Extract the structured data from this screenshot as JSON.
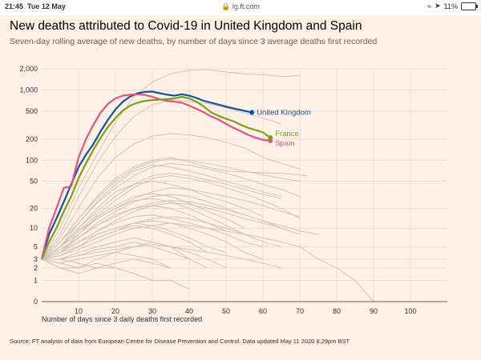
{
  "statusbar": {
    "time": "21:45",
    "date": "Tue 12 May",
    "url": "ig.ft.com",
    "battery": "11%"
  },
  "title": "New deaths attributed to Covid-19 in United Kingdom and Spain",
  "subtitle": "Seven-day rolling average of new deaths, by number of days since 3 average deaths first recorded",
  "source": "Source: FT analysis of data from European Centre for Disease Prevention and Control. Data updated May 11 2020 8.29pm BST",
  "colors": {
    "background": "#fff1e5",
    "grid": "#e9ddd2",
    "other": "#c9c0b8",
    "uk": "#0f5499",
    "spain": "#e25381",
    "france": "#7e9d1c"
  },
  "chart_data": {
    "type": "line",
    "xlabel": "Number of days since 3 daily deaths first recorded",
    "ylabel": "",
    "yscale": "log",
    "xlim": [
      0,
      110
    ],
    "ylim": [
      0,
      2000
    ],
    "xticks": [
      10,
      20,
      30,
      40,
      50,
      60,
      70,
      80,
      90,
      100
    ],
    "yticks": [
      {
        "v": 0,
        "label": "0"
      },
      {
        "v": 1,
        "label": "1"
      },
      {
        "v": 2,
        "label": "2"
      },
      {
        "v": 3,
        "label": "3"
      },
      {
        "v": 5,
        "label": "5"
      },
      {
        "v": 10,
        "label": "10"
      },
      {
        "v": 20,
        "label": "20"
      },
      {
        "v": 50,
        "label": "50"
      },
      {
        "v": 100,
        "label": "100"
      },
      {
        "v": 200,
        "label": "200"
      },
      {
        "v": 500,
        "label": "500"
      },
      {
        "v": 1000,
        "label": "1,000"
      },
      {
        "v": 2000,
        "label": "2,000"
      }
    ],
    "series": [
      {
        "name": "United Kingdom",
        "color": "#0f5499",
        "highlight": true,
        "x": [
          0,
          2,
          4,
          6,
          8,
          10,
          12,
          14,
          16,
          18,
          20,
          22,
          24,
          26,
          28,
          30,
          32,
          34,
          36,
          38,
          40,
          42,
          44,
          46,
          48,
          50,
          52,
          54,
          57
        ],
        "y": [
          3,
          8,
          14,
          25,
          45,
          80,
          120,
          170,
          260,
          380,
          530,
          680,
          810,
          900,
          940,
          950,
          900,
          860,
          830,
          870,
          830,
          770,
          700,
          660,
          620,
          580,
          550,
          520,
          480
        ]
      },
      {
        "name": "Spain",
        "color": "#e25381",
        "highlight": true,
        "x": [
          0,
          2,
          4,
          6,
          8,
          10,
          12,
          14,
          16,
          18,
          20,
          22,
          24,
          26,
          28,
          30,
          32,
          34,
          36,
          38,
          40,
          42,
          44,
          46,
          48,
          50,
          52,
          54,
          56,
          58,
          60,
          62
        ],
        "y": [
          3,
          10,
          20,
          40,
          42,
          110,
          200,
          320,
          480,
          640,
          760,
          830,
          860,
          870,
          850,
          800,
          740,
          700,
          680,
          660,
          600,
          540,
          480,
          420,
          380,
          330,
          290,
          260,
          230,
          210,
          195,
          190
        ]
      },
      {
        "name": "France",
        "color": "#7e9d1c",
        "highlight": true,
        "x": [
          0,
          2,
          4,
          6,
          8,
          10,
          12,
          14,
          16,
          18,
          20,
          22,
          24,
          26,
          28,
          30,
          32,
          34,
          36,
          38,
          40,
          42,
          44,
          46,
          48,
          50,
          52,
          54,
          56,
          58,
          60,
          62
        ],
        "y": [
          3,
          6,
          10,
          18,
          30,
          55,
          90,
          140,
          210,
          300,
          400,
          510,
          600,
          660,
          700,
          720,
          730,
          740,
          760,
          800,
          760,
          680,
          580,
          480,
          430,
          390,
          360,
          320,
          290,
          270,
          250,
          210
        ]
      },
      {
        "name": "",
        "x": [
          0,
          5,
          10,
          15,
          20,
          25,
          30,
          35,
          40,
          45,
          50,
          55,
          60,
          65,
          70
        ],
        "y": [
          3,
          10,
          40,
          120,
          350,
          800,
          1300,
          1700,
          1900,
          1950,
          1800,
          1700,
          1650,
          1550,
          1600
        ]
      },
      {
        "name": "",
        "x": [
          0,
          5,
          10,
          15,
          20,
          25,
          30,
          35,
          40,
          45,
          50,
          55,
          60,
          65
        ],
        "y": [
          3,
          8,
          30,
          90,
          220,
          420,
          620,
          720,
          690,
          640,
          560,
          470,
          400,
          330
        ]
      },
      {
        "name": "",
        "x": [
          0,
          5,
          10,
          15,
          20,
          25,
          30,
          35,
          40,
          45,
          50,
          55,
          60,
          65,
          70
        ],
        "y": [
          3,
          7,
          20,
          55,
          110,
          170,
          220,
          240,
          230,
          210,
          180,
          150,
          110,
          90,
          75
        ]
      },
      {
        "name": "",
        "x": [
          0,
          5,
          10,
          15,
          20,
          25,
          30,
          35,
          40,
          45,
          50,
          55,
          60,
          65,
          72
        ],
        "y": [
          3,
          6,
          14,
          30,
          55,
          80,
          100,
          110,
          95,
          80,
          70,
          68,
          66,
          65,
          60
        ]
      },
      {
        "name": "",
        "x": [
          0,
          5,
          10,
          15,
          20,
          25,
          30,
          35,
          40,
          45,
          50,
          55,
          60,
          65
        ],
        "y": [
          3,
          5,
          12,
          25,
          45,
          70,
          85,
          80,
          70,
          60,
          50,
          42,
          35,
          30
        ]
      },
      {
        "name": "",
        "x": [
          0,
          5,
          10,
          15,
          20,
          25,
          30,
          35,
          40,
          45,
          50,
          55,
          60
        ],
        "y": [
          3,
          5,
          10,
          20,
          35,
          45,
          50,
          45,
          38,
          30,
          25,
          20,
          15
        ]
      },
      {
        "name": "",
        "x": [
          0,
          5,
          10,
          15,
          20,
          25,
          30,
          35,
          40,
          45,
          50,
          55
        ],
        "y": [
          3,
          4,
          8,
          15,
          22,
          30,
          33,
          30,
          24,
          18,
          14,
          10
        ]
      },
      {
        "name": "",
        "x": [
          0,
          5,
          10,
          15,
          20,
          25,
          30,
          35,
          40,
          45,
          50
        ],
        "y": [
          3,
          4,
          7,
          11,
          16,
          20,
          22,
          20,
          16,
          12,
          9
        ]
      },
      {
        "name": "",
        "x": [
          0,
          5,
          10,
          15,
          20,
          25,
          30,
          35,
          40,
          45
        ],
        "y": [
          3,
          3.5,
          5,
          7,
          9,
          11,
          10,
          8,
          6,
          4
        ]
      },
      {
        "name": "",
        "x": [
          0,
          5,
          10,
          15,
          20,
          25,
          30,
          35,
          40
        ],
        "y": [
          3,
          3,
          4,
          5,
          6,
          7,
          6,
          5,
          3
        ]
      },
      {
        "name": "",
        "x": [
          0,
          5,
          10,
          15,
          20,
          25,
          30,
          35
        ],
        "y": [
          3,
          2.5,
          3,
          3.5,
          4,
          3.5,
          3,
          2
        ]
      },
      {
        "name": "",
        "x": [
          0,
          5,
          10,
          15,
          20,
          25,
          30
        ],
        "y": [
          3,
          2,
          2,
          2.5,
          2,
          1.5,
          1
        ]
      },
      {
        "name": "",
        "x": [
          0,
          5,
          10,
          15,
          20,
          25,
          30,
          35,
          40,
          45,
          50,
          55,
          60,
          65,
          70
        ],
        "y": [
          3,
          4,
          6,
          9,
          13,
          18,
          22,
          24,
          23,
          20,
          17,
          14,
          12,
          10,
          8
        ]
      },
      {
        "name": "",
        "x": [
          0,
          5,
          10,
          15,
          20,
          25,
          30,
          35,
          40,
          45,
          50,
          55,
          60,
          65,
          70,
          75,
          80,
          85,
          90,
          95,
          100
        ],
        "y": [
          3,
          3.5,
          4.5,
          6,
          8,
          10,
          11,
          12,
          11,
          10,
          9,
          8,
          7,
          6,
          5,
          3,
          2,
          1,
          0,
          0,
          0
        ]
      },
      {
        "name": "",
        "x": [
          0,
          5,
          10,
          15,
          20,
          25,
          30,
          35,
          40,
          45,
          50,
          55,
          60,
          65,
          70
        ],
        "y": [
          3,
          5,
          9,
          16,
          26,
          40,
          55,
          60,
          55,
          48,
          40,
          33,
          26,
          20,
          14
        ]
      },
      {
        "name": "",
        "x": [
          0,
          5,
          10,
          15,
          20,
          25,
          30,
          35,
          40,
          45,
          50,
          55
        ],
        "y": [
          3,
          5,
          9,
          14,
          20,
          26,
          28,
          25,
          20,
          15,
          11,
          8
        ]
      },
      {
        "name": "",
        "x": [
          0,
          5,
          10,
          15,
          20,
          25,
          30,
          35,
          40,
          45,
          50,
          55,
          60,
          65
        ],
        "y": [
          3,
          4,
          5,
          7,
          9,
          12,
          14,
          15,
          14,
          12,
          10,
          8,
          6,
          5
        ]
      },
      {
        "name": "",
        "x": [
          0,
          5,
          10,
          15,
          20,
          25,
          30,
          35,
          40,
          45,
          50
        ],
        "y": [
          3,
          2.5,
          2,
          3,
          4,
          5,
          6,
          5,
          4,
          3,
          2
        ]
      },
      {
        "name": "",
        "x": [
          0,
          5,
          10,
          15,
          20,
          25,
          30,
          35,
          40,
          45,
          50,
          55,
          60,
          65,
          70
        ],
        "y": [
          3,
          6,
          12,
          24,
          40,
          60,
          80,
          90,
          85,
          75,
          65,
          55,
          45,
          38,
          30
        ]
      },
      {
        "name": "",
        "x": [
          0,
          5,
          10,
          15,
          20,
          25,
          30,
          35,
          40,
          45
        ],
        "y": [
          3,
          3,
          3.5,
          4.5,
          5,
          6,
          5,
          4,
          3,
          2
        ]
      },
      {
        "name": "",
        "x": [
          0,
          5,
          10,
          15,
          20,
          25,
          30,
          35,
          40,
          45,
          50,
          55,
          60,
          65
        ],
        "y": [
          3,
          4,
          7,
          12,
          18,
          25,
          30,
          32,
          30,
          25,
          20,
          16,
          13,
          10
        ]
      },
      {
        "name": "",
        "x": [
          0,
          5,
          10,
          15,
          20,
          25,
          30,
          35,
          40,
          45,
          50,
          55,
          60
        ],
        "y": [
          3,
          4,
          6,
          8,
          10,
          12,
          13,
          12,
          10,
          8,
          6,
          4,
          3
        ]
      },
      {
        "name": "",
        "x": [
          0,
          5,
          10,
          15,
          20,
          25,
          30,
          35,
          40,
          45,
          50,
          55,
          60,
          65,
          70
        ],
        "y": [
          3,
          5,
          8,
          14,
          20,
          28,
          35,
          40,
          38,
          34,
          30,
          26,
          22,
          18,
          15
        ]
      },
      {
        "name": "",
        "x": [
          0,
          5,
          10,
          15,
          20,
          25,
          30,
          35
        ],
        "y": [
          3,
          2,
          1.5,
          2,
          2.5,
          3,
          2.5,
          2
        ]
      },
      {
        "name": "",
        "x": [
          0,
          5,
          10,
          15,
          20,
          25,
          30,
          35,
          40,
          45,
          50,
          55,
          60,
          65,
          70,
          75
        ],
        "y": [
          3,
          4.5,
          7,
          11,
          15,
          20,
          24,
          26,
          25,
          22,
          19,
          16,
          13,
          11,
          9,
          8
        ]
      },
      {
        "name": "",
        "x": [
          0,
          5,
          10,
          15,
          20,
          25,
          30,
          35,
          40,
          45,
          50
        ],
        "y": [
          3,
          3.5,
          5,
          8,
          10,
          12,
          11,
          9,
          7,
          5,
          4
        ]
      },
      {
        "name": "",
        "x": [
          0,
          5,
          10,
          15,
          20,
          25,
          30,
          35,
          40,
          45,
          50,
          55,
          60,
          65
        ],
        "y": [
          3,
          5,
          10,
          18,
          30,
          45,
          60,
          65,
          60,
          52,
          45,
          38,
          32,
          28
        ]
      },
      {
        "name": "",
        "x": [
          0,
          5,
          10,
          15,
          20,
          25,
          30,
          35,
          40,
          45,
          50,
          55,
          60,
          65
        ],
        "y": [
          3,
          3,
          3.5,
          4,
          4.5,
          5,
          5.5,
          5,
          4.5,
          4,
          3.5,
          3,
          2.5,
          2
        ]
      },
      {
        "name": "",
        "x": [
          0,
          5,
          10,
          15,
          20,
          25,
          30,
          35,
          40,
          45,
          50,
          55,
          60,
          65,
          70
        ],
        "y": [
          3,
          6,
          14,
          28,
          50,
          75,
          95,
          105,
          100,
          90,
          80,
          70,
          62,
          55,
          50
        ]
      },
      {
        "name": "",
        "x": [
          0,
          5,
          10,
          15,
          20,
          25,
          30,
          35,
          40
        ],
        "y": [
          3,
          3,
          2.5,
          2,
          2,
          1.5,
          1,
          1,
          0.5
        ]
      },
      {
        "name": "",
        "x": [
          0,
          5,
          10,
          15,
          20,
          25,
          30,
          35,
          40,
          45,
          50,
          55,
          60
        ],
        "y": [
          3,
          4,
          6,
          9,
          12,
          15,
          16,
          14,
          12,
          10,
          8,
          6,
          5
        ]
      }
    ]
  }
}
